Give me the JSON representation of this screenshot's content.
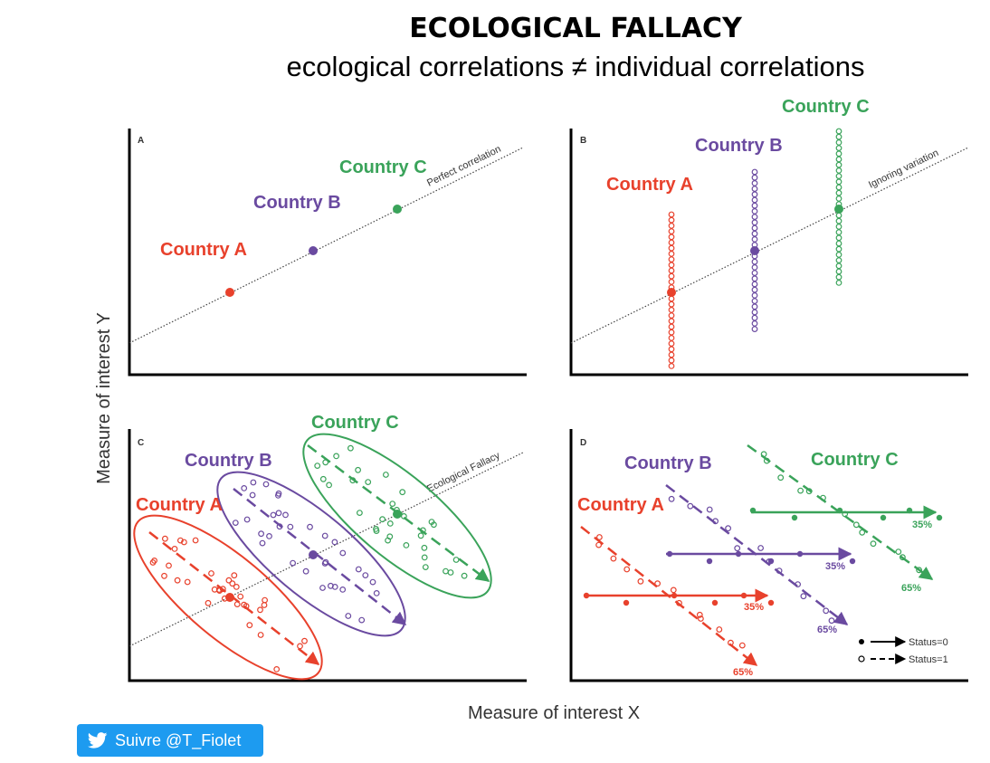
{
  "title": "ECOLOGICAL FALLACY",
  "subtitle": "ecological correlations ≠ individual correlations",
  "axes": {
    "y_label": "Measure of interest Y",
    "x_label": "Measure of interest X"
  },
  "colors": {
    "a": "#e8412c",
    "b": "#6a4aa0",
    "c": "#3aa35a"
  },
  "panels": {
    "a": {
      "letter": "A",
      "line_label": "Perfect correlation",
      "countries": [
        "Country A",
        "Country B",
        "Country C"
      ]
    },
    "b": {
      "letter": "B",
      "line_label": "Ignoring variation",
      "countries": [
        "Country A",
        "Country B",
        "Country C"
      ]
    },
    "c": {
      "letter": "C",
      "line_label": "Ecological Fallacy",
      "countries": [
        "Country A",
        "Country B",
        "Country C"
      ]
    },
    "d": {
      "letter": "D",
      "countries": [
        "Country A",
        "Country B",
        "Country C"
      ],
      "status0_pct": "35%",
      "status1_pct": "65%",
      "legend": {
        "status0": "Status=0",
        "status1": "Status=1"
      }
    }
  },
  "follow": {
    "label": "Suivre @T_Fiolet",
    "icon": "twitter-bird-icon"
  }
}
